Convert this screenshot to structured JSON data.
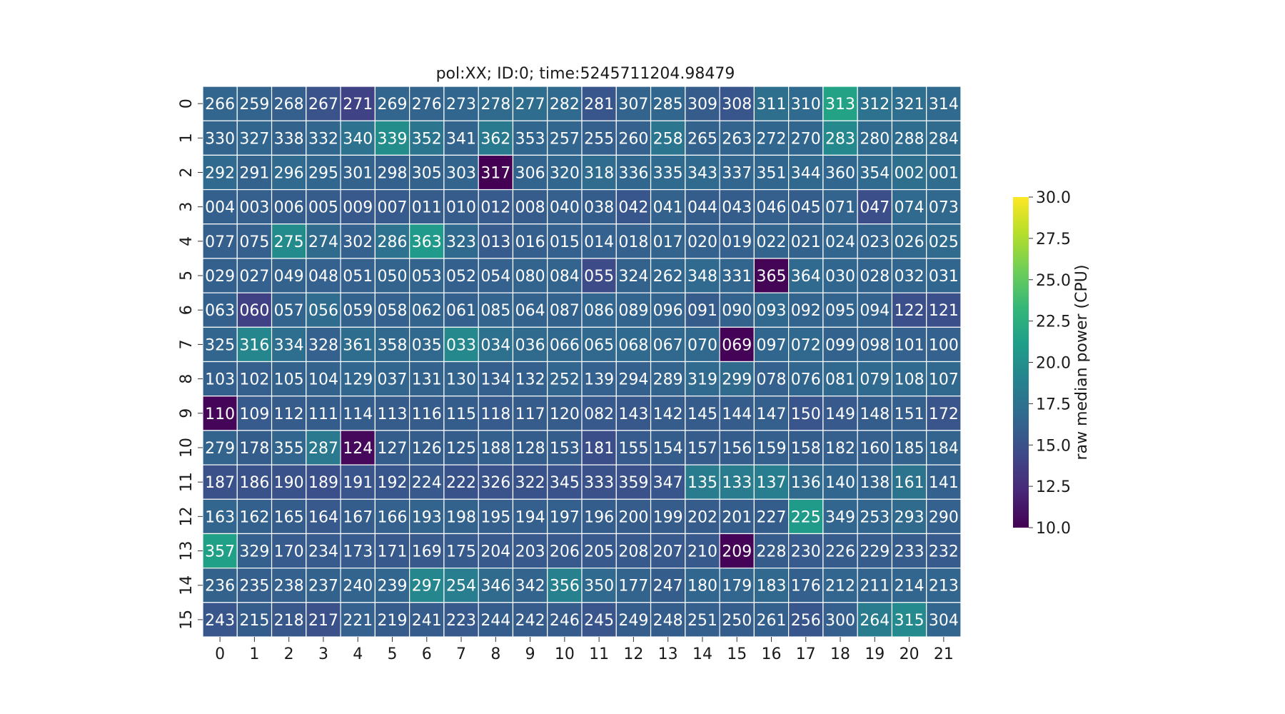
{
  "chart_data": {
    "type": "heatmap",
    "title": "pol:XX; ID:0; time:5245711204.98479",
    "xlabel": "",
    "ylabel": "",
    "x_categories": [
      "0",
      "1",
      "2",
      "3",
      "4",
      "5",
      "6",
      "7",
      "8",
      "9",
      "10",
      "11",
      "12",
      "13",
      "14",
      "15",
      "16",
      "17",
      "18",
      "19",
      "20",
      "21"
    ],
    "y_categories": [
      "0",
      "1",
      "2",
      "3",
      "4",
      "5",
      "6",
      "7",
      "8",
      "9",
      "10",
      "11",
      "12",
      "13",
      "14",
      "15"
    ],
    "labels": [
      [
        "266",
        "259",
        "268",
        "267",
        "271",
        "269",
        "276",
        "273",
        "278",
        "277",
        "282",
        "281",
        "307",
        "285",
        "309",
        "308",
        "311",
        "310",
        "313",
        "312",
        "321",
        "314"
      ],
      [
        "330",
        "327",
        "338",
        "332",
        "340",
        "339",
        "352",
        "341",
        "362",
        "353",
        "257",
        "255",
        "260",
        "258",
        "265",
        "263",
        "272",
        "270",
        "283",
        "280",
        "288",
        "284"
      ],
      [
        "292",
        "291",
        "296",
        "295",
        "301",
        "298",
        "305",
        "303",
        "317",
        "306",
        "320",
        "318",
        "336",
        "335",
        "343",
        "337",
        "351",
        "344",
        "360",
        "354",
        "002",
        "001"
      ],
      [
        "004",
        "003",
        "006",
        "005",
        "009",
        "007",
        "011",
        "010",
        "012",
        "008",
        "040",
        "038",
        "042",
        "041",
        "044",
        "043",
        "046",
        "045",
        "071",
        "047",
        "074",
        "073"
      ],
      [
        "077",
        "075",
        "275",
        "274",
        "302",
        "286",
        "363",
        "323",
        "013",
        "016",
        "015",
        "014",
        "018",
        "017",
        "020",
        "019",
        "022",
        "021",
        "024",
        "023",
        "026",
        "025"
      ],
      [
        "029",
        "027",
        "049",
        "048",
        "051",
        "050",
        "053",
        "052",
        "054",
        "080",
        "084",
        "055",
        "324",
        "262",
        "348",
        "331",
        "365",
        "364",
        "030",
        "028",
        "032",
        "031"
      ],
      [
        "063",
        "060",
        "057",
        "056",
        "059",
        "058",
        "062",
        "061",
        "085",
        "064",
        "087",
        "086",
        "089",
        "096",
        "091",
        "090",
        "093",
        "092",
        "095",
        "094",
        "122",
        "121"
      ],
      [
        "325",
        "316",
        "334",
        "328",
        "361",
        "358",
        "035",
        "033",
        "034",
        "036",
        "066",
        "065",
        "068",
        "067",
        "070",
        "069",
        "097",
        "072",
        "099",
        "098",
        "101",
        "100"
      ],
      [
        "103",
        "102",
        "105",
        "104",
        "129",
        "037",
        "131",
        "130",
        "134",
        "132",
        "252",
        "139",
        "294",
        "289",
        "319",
        "299",
        "078",
        "076",
        "081",
        "079",
        "108",
        "107"
      ],
      [
        "110",
        "109",
        "112",
        "111",
        "114",
        "113",
        "116",
        "115",
        "118",
        "117",
        "120",
        "082",
        "143",
        "142",
        "145",
        "144",
        "147",
        "150",
        "149",
        "148",
        "151",
        "172"
      ],
      [
        "279",
        "178",
        "355",
        "287",
        "124",
        "127",
        "126",
        "125",
        "188",
        "128",
        "153",
        "181",
        "155",
        "154",
        "157",
        "156",
        "159",
        "158",
        "182",
        "160",
        "185",
        "184"
      ],
      [
        "187",
        "186",
        "190",
        "189",
        "191",
        "192",
        "224",
        "222",
        "326",
        "322",
        "345",
        "333",
        "359",
        "347",
        "135",
        "133",
        "137",
        "136",
        "140",
        "138",
        "161",
        "141"
      ],
      [
        "163",
        "162",
        "165",
        "164",
        "167",
        "166",
        "193",
        "198",
        "195",
        "194",
        "197",
        "196",
        "200",
        "199",
        "202",
        "201",
        "227",
        "225",
        "349",
        "253",
        "293",
        "290"
      ],
      [
        "357",
        "329",
        "170",
        "234",
        "173",
        "171",
        "169",
        "175",
        "204",
        "203",
        "206",
        "205",
        "208",
        "207",
        "210",
        "209",
        "228",
        "230",
        "226",
        "229",
        "233",
        "232"
      ],
      [
        "236",
        "235",
        "238",
        "237",
        "240",
        "239",
        "297",
        "254",
        "346",
        "342",
        "356",
        "350",
        "177",
        "247",
        "180",
        "179",
        "183",
        "176",
        "212",
        "211",
        "214",
        "213"
      ],
      [
        "243",
        "215",
        "218",
        "217",
        "221",
        "219",
        "241",
        "223",
        "244",
        "242",
        "246",
        "245",
        "249",
        "248",
        "251",
        "250",
        "261",
        "256",
        "300",
        "264",
        "315",
        "304"
      ]
    ],
    "values": [
      [
        16.5,
        16.4,
        16.0,
        15.2,
        14.0,
        16.5,
        16.4,
        16.6,
        16.9,
        17.1,
        16.8,
        15.4,
        16.4,
        16.6,
        15.8,
        15.4,
        17.3,
        16.8,
        21.5,
        17.5,
        17.2,
        16.8
      ],
      [
        16.4,
        16.6,
        16.3,
        16.6,
        17.5,
        19.8,
        17.8,
        16.4,
        18.2,
        16.6,
        16.5,
        16.0,
        16.2,
        17.9,
        16.3,
        16.4,
        16.6,
        16.6,
        19.4,
        16.8,
        17.1,
        16.9
      ],
      [
        16.8,
        16.3,
        16.8,
        16.6,
        16.3,
        16.1,
        16.3,
        16.4,
        10.0,
        16.4,
        16.6,
        17.0,
        16.6,
        16.8,
        16.8,
        16.5,
        16.6,
        16.7,
        16.6,
        16.8,
        17.3,
        17.0
      ],
      [
        16.1,
        16.0,
        15.9,
        15.8,
        15.6,
        15.7,
        15.8,
        15.8,
        15.7,
        15.8,
        16.0,
        15.9,
        15.4,
        16.3,
        15.9,
        15.9,
        16.0,
        15.9,
        16.4,
        14.8,
        16.8,
        16.7
      ],
      [
        16.0,
        16.0,
        19.6,
        16.9,
        16.2,
        17.5,
        20.8,
        16.8,
        15.7,
        16.0,
        16.2,
        16.2,
        16.2,
        16.4,
        16.2,
        16.2,
        16.4,
        16.3,
        16.5,
        16.4,
        16.7,
        16.9
      ],
      [
        16.1,
        16.2,
        16.3,
        16.2,
        16.2,
        16.4,
        16.4,
        16.1,
        16.2,
        16.4,
        16.4,
        14.6,
        16.3,
        16.6,
        16.8,
        16.5,
        10.2,
        16.8,
        16.6,
        16.4,
        16.5,
        16.6
      ],
      [
        16.1,
        13.9,
        16.4,
        17.0,
        16.3,
        16.2,
        16.4,
        16.1,
        16.4,
        16.3,
        16.3,
        16.5,
        16.4,
        16.4,
        15.8,
        16.3,
        16.7,
        16.4,
        16.4,
        16.3,
        14.9,
        14.9
      ],
      [
        16.5,
        19.3,
        17.2,
        16.2,
        17.1,
        16.7,
        16.7,
        19.4,
        17.4,
        16.9,
        16.7,
        16.7,
        16.8,
        16.7,
        16.7,
        10.1,
        16.6,
        16.7,
        16.3,
        16.4,
        16.2,
        16.2
      ],
      [
        16.1,
        16.0,
        16.3,
        16.3,
        16.6,
        16.5,
        16.3,
        16.4,
        16.0,
        16.1,
        16.5,
        16.2,
        16.1,
        16.4,
        16.8,
        16.9,
        16.2,
        16.6,
        16.7,
        16.8,
        16.8,
        16.7
      ],
      [
        10.3,
        15.7,
        15.8,
        15.9,
        15.9,
        15.8,
        15.8,
        15.9,
        15.7,
        15.8,
        15.8,
        15.6,
        15.5,
        15.8,
        15.8,
        15.8,
        16.0,
        15.3,
        15.6,
        15.9,
        16.0,
        15.3
      ],
      [
        16.4,
        15.9,
        16.5,
        18.1,
        10.4,
        15.9,
        15.9,
        15.9,
        16.1,
        15.9,
        15.9,
        14.8,
        15.7,
        15.9,
        15.8,
        15.9,
        16.0,
        15.9,
        16.0,
        16.0,
        16.3,
        16.4
      ],
      [
        15.0,
        15.1,
        15.1,
        14.9,
        15.3,
        15.4,
        15.6,
        15.1,
        15.2,
        15.1,
        15.2,
        15.0,
        15.0,
        15.4,
        18.3,
        18.4,
        18.5,
        16.9,
        16.6,
        16.4,
        17.6,
        16.2
      ],
      [
        16.5,
        16.1,
        15.9,
        15.6,
        15.9,
        16.2,
        16.4,
        16.3,
        16.0,
        16.0,
        16.1,
        15.9,
        15.8,
        15.8,
        15.8,
        15.9,
        15.9,
        20.9,
        16.5,
        16.5,
        16.9,
        16.2
      ],
      [
        21.3,
        16.1,
        15.7,
        15.7,
        15.7,
        15.6,
        15.6,
        15.7,
        15.6,
        15.6,
        15.6,
        15.6,
        15.6,
        15.6,
        15.6,
        10.1,
        15.8,
        15.7,
        15.8,
        15.8,
        15.8,
        15.7
      ],
      [
        16.3,
        16.0,
        16.2,
        16.3,
        16.4,
        16.5,
        19.2,
        18.5,
        16.9,
        16.4,
        18.7,
        16.8,
        16.4,
        15.9,
        16.6,
        16.5,
        16.7,
        16.1,
        16.5,
        16.4,
        16.5,
        16.5
      ],
      [
        15.4,
        15.9,
        15.5,
        15.0,
        16.2,
        15.8,
        15.8,
        15.6,
        15.9,
        15.8,
        15.8,
        15.3,
        15.9,
        15.9,
        16.0,
        15.9,
        16.1,
        15.4,
        16.0,
        18.4,
        19.5,
        16.5
      ]
    ],
    "colorbar": {
      "label": "raw median power (CPU)",
      "range": [
        10.0,
        30.0
      ],
      "ticks": [
        "10.0",
        "12.5",
        "15.0",
        "17.5",
        "20.0",
        "22.5",
        "25.0",
        "27.5",
        "30.0"
      ],
      "colormap": "viridis"
    },
    "grid": false,
    "cell_border_color": "#ffffff",
    "annotation_color": "#ffffff"
  }
}
